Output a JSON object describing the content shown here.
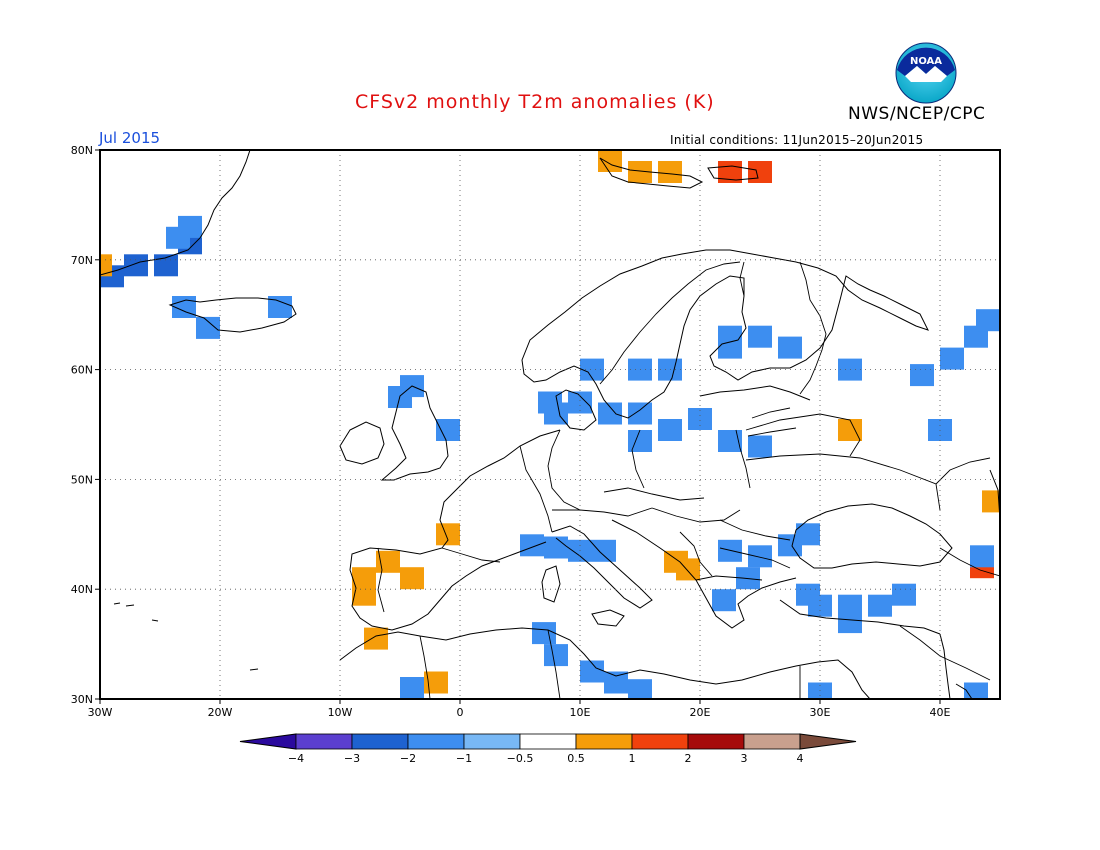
{
  "header": {
    "title": "CFSv2 monthly T2m anomalies (K)",
    "agency": "NWS/NCEP/CPC",
    "month": "Jul 2015",
    "initial_conditions": "Initial conditions: 11Jun2015–20Jun2015",
    "logo_text": "NOAA"
  },
  "map": {
    "projection": "equirectangular",
    "lon_range": [
      -30,
      45
    ],
    "lat_range": [
      30,
      80
    ],
    "lat_ticks": [
      "80N",
      "70N",
      "60N",
      "50N",
      "40N",
      "30N"
    ],
    "lon_ticks": [
      "30W",
      "20W",
      "10W",
      "0",
      "10E",
      "20E",
      "30E",
      "40E"
    ],
    "grid": "dotted"
  },
  "legend": {
    "labels": [
      "-4",
      "-3",
      "-2",
      "-1",
      "-0.5",
      "0.5",
      "1",
      "2",
      "3",
      "4"
    ],
    "colors": [
      "#2b0a9e",
      "#5b3fcf",
      "#1e62d0",
      "#3d8ef0",
      "#78b8f5",
      "#ffffff",
      "#f59d0a",
      "#f0410d",
      "#a60b0b",
      "#c9a08e",
      "#7a4a3a"
    ]
  },
  "anomaly_cells": [
    {
      "lon": -27,
      "lat": 69.5,
      "v": -2.2
    },
    {
      "lon": -24.5,
      "lat": 69.5,
      "v": -2.2
    },
    {
      "lon": -22.5,
      "lat": 71.5,
      "v": -2.2
    },
    {
      "lon": -23.5,
      "lat": 72,
      "v": -1.2
    },
    {
      "lon": -29,
      "lat": 68.5,
      "v": -2.5
    },
    {
      "lon": -22.5,
      "lat": 73,
      "v": -1
    },
    {
      "lon": -30,
      "lat": 69.5,
      "v": 0.8
    },
    {
      "lon": -23,
      "lat": 65.7,
      "v": -1.2
    },
    {
      "lon": -15,
      "lat": 65.7,
      "v": -1
    },
    {
      "lon": -21,
      "lat": 63.8,
      "v": -1
    },
    {
      "lon": 12.5,
      "lat": 79,
      "v": 0.8
    },
    {
      "lon": 15,
      "lat": 78,
      "v": 0.8
    },
    {
      "lon": 17.5,
      "lat": 78,
      "v": 0.8
    },
    {
      "lon": 22.5,
      "lat": 78,
      "v": 1.5
    },
    {
      "lon": 25,
      "lat": 78,
      "v": 1.5
    },
    {
      "lon": 25,
      "lat": 63,
      "v": -1.5
    },
    {
      "lon": 22.5,
      "lat": 62,
      "v": -1
    },
    {
      "lon": 27.5,
      "lat": 62,
      "v": -1
    },
    {
      "lon": 22.5,
      "lat": 63,
      "v": -1
    },
    {
      "lon": 17.5,
      "lat": 60,
      "v": -1
    },
    {
      "lon": 15,
      "lat": 60,
      "v": -1
    },
    {
      "lon": 11,
      "lat": 60,
      "v": -1
    },
    {
      "lon": 10,
      "lat": 57,
      "v": -1
    },
    {
      "lon": 7.5,
      "lat": 57,
      "v": -1
    },
    {
      "lon": 8,
      "lat": 56,
      "v": -1
    },
    {
      "lon": 12.5,
      "lat": 56,
      "v": -1
    },
    {
      "lon": 15,
      "lat": 56,
      "v": -1
    },
    {
      "lon": 17.5,
      "lat": 54.5,
      "v": -1
    },
    {
      "lon": 15,
      "lat": 53.5,
      "v": -1
    },
    {
      "lon": 22.5,
      "lat": 53.5,
      "v": -1
    },
    {
      "lon": 25,
      "lat": 53,
      "v": -1
    },
    {
      "lon": 20,
      "lat": 55.5,
      "v": -1
    },
    {
      "lon": 32.5,
      "lat": 54.5,
      "v": 0.8
    },
    {
      "lon": 32.5,
      "lat": 60,
      "v": -1
    },
    {
      "lon": 40,
      "lat": 54.5,
      "v": -1
    },
    {
      "lon": 38.5,
      "lat": 59.5,
      "v": -1
    },
    {
      "lon": 41,
      "lat": 61,
      "v": -1
    },
    {
      "lon": 43,
      "lat": 63,
      "v": -1
    },
    {
      "lon": 44,
      "lat": 64.5,
      "v": -1
    },
    {
      "lon": -5,
      "lat": 57.5,
      "v": -1.2
    },
    {
      "lon": -4,
      "lat": 58.5,
      "v": -1
    },
    {
      "lon": -1,
      "lat": 54.5,
      "v": -1
    },
    {
      "lon": -1,
      "lat": 45,
      "v": 0.8
    },
    {
      "lon": -6,
      "lat": 42.5,
      "v": 0.8
    },
    {
      "lon": -8,
      "lat": 41,
      "v": 0.8
    },
    {
      "lon": -8,
      "lat": 39.5,
      "v": 0.8
    },
    {
      "lon": -4,
      "lat": 41,
      "v": 0.8
    },
    {
      "lon": -7,
      "lat": 35.5,
      "v": 0.8
    },
    {
      "lon": -2,
      "lat": 31.5,
      "v": 0.8
    },
    {
      "lon": -4,
      "lat": 31,
      "v": -1
    },
    {
      "lon": 6,
      "lat": 44,
      "v": -1
    },
    {
      "lon": 8,
      "lat": 43.8,
      "v": -1
    },
    {
      "lon": 10,
      "lat": 43.5,
      "v": -1
    },
    {
      "lon": 12,
      "lat": 43.5,
      "v": -1
    },
    {
      "lon": 18,
      "lat": 42.5,
      "v": 0.8
    },
    {
      "lon": 19,
      "lat": 41.8,
      "v": 0.8
    },
    {
      "lon": 22.5,
      "lat": 43.5,
      "v": -1
    },
    {
      "lon": 25,
      "lat": 43,
      "v": -1.5
    },
    {
      "lon": 27.5,
      "lat": 44,
      "v": -1
    },
    {
      "lon": 29,
      "lat": 45,
      "v": -1
    },
    {
      "lon": 24,
      "lat": 41,
      "v": -1
    },
    {
      "lon": 22,
      "lat": 39,
      "v": -1
    },
    {
      "lon": 29,
      "lat": 39.5,
      "v": -1
    },
    {
      "lon": 30,
      "lat": 38.5,
      "v": -1.5
    },
    {
      "lon": 32.5,
      "lat": 38.5,
      "v": -1
    },
    {
      "lon": 35,
      "lat": 38.5,
      "v": -1
    },
    {
      "lon": 37,
      "lat": 39.5,
      "v": -1
    },
    {
      "lon": 32.5,
      "lat": 37,
      "v": -1
    },
    {
      "lon": 43.5,
      "lat": 42,
      "v": 1.5
    },
    {
      "lon": 43.5,
      "lat": 43,
      "v": -1
    },
    {
      "lon": 44.5,
      "lat": 48,
      "v": 0.8
    },
    {
      "lon": 7,
      "lat": 36,
      "v": -1
    },
    {
      "lon": 8,
      "lat": 34,
      "v": -1
    },
    {
      "lon": 11,
      "lat": 32.5,
      "v": -1
    },
    {
      "lon": 13,
      "lat": 31.5,
      "v": -1
    },
    {
      "lon": 15,
      "lat": 30.8,
      "v": -1
    },
    {
      "lon": 30,
      "lat": 30.5,
      "v": -1
    },
    {
      "lon": 43,
      "lat": 30.5,
      "v": -1
    }
  ]
}
